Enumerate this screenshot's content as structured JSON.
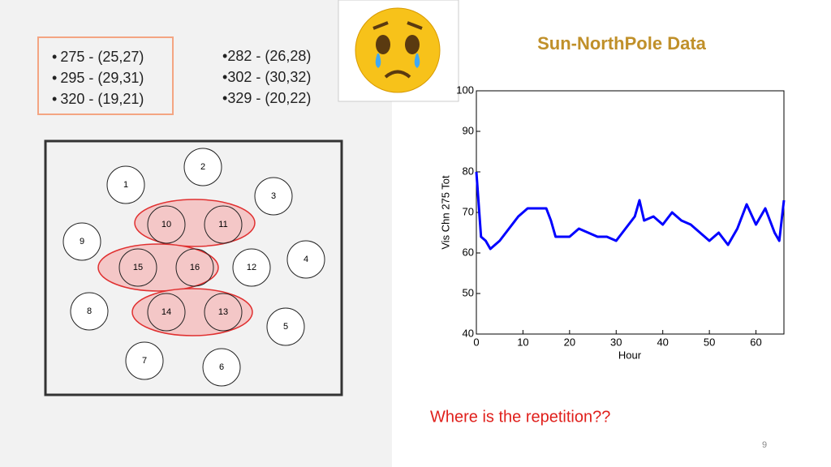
{
  "bullets_left": [
    "275 - (25,27)",
    "295 - (29,31)",
    "320 - (19,21)"
  ],
  "bullets_right": [
    "282 - (26,28)",
    "302 - (30,32)",
    "329 - (20,22)"
  ],
  "nodes": [
    {
      "label": "1"
    },
    {
      "label": "2"
    },
    {
      "label": "3"
    },
    {
      "label": "4"
    },
    {
      "label": "5"
    },
    {
      "label": "6"
    },
    {
      "label": "7"
    },
    {
      "label": "8"
    },
    {
      "label": "9"
    },
    {
      "label": "10"
    },
    {
      "label": "11"
    },
    {
      "label": "12"
    },
    {
      "label": "13"
    },
    {
      "label": "14"
    },
    {
      "label": "15"
    },
    {
      "label": "16"
    }
  ],
  "chart_data": {
    "type": "line",
    "title": "Sun-NorthPole Data",
    "x_label": "Hour",
    "y_label": "Vis Chn 275 Tot",
    "x": [
      0,
      1,
      2,
      3,
      5,
      7,
      9,
      11,
      13,
      15,
      16,
      17,
      20,
      22,
      24,
      26,
      28,
      30,
      32,
      34,
      35,
      36,
      38,
      40,
      42,
      44,
      46,
      48,
      50,
      52,
      54,
      56,
      58,
      60,
      62,
      64,
      65,
      66
    ],
    "values": [
      80,
      64,
      63,
      61,
      63,
      66,
      69,
      71,
      71,
      71,
      68,
      64,
      64,
      66,
      65,
      64,
      64,
      63,
      66,
      69,
      73,
      68,
      69,
      67,
      70,
      68,
      67,
      65,
      63,
      65,
      62,
      66,
      72,
      67,
      71,
      65,
      63,
      73
    ],
    "color": "#0000ff",
    "xlim": [
      0,
      66
    ],
    "xticks": [
      0,
      10,
      20,
      30,
      40,
      50,
      60
    ],
    "ylim": [
      40,
      100
    ],
    "yticks": [
      40,
      50,
      60,
      70,
      80,
      90,
      100
    ]
  },
  "question": "Where is the repetition??",
  "page_number": "9"
}
